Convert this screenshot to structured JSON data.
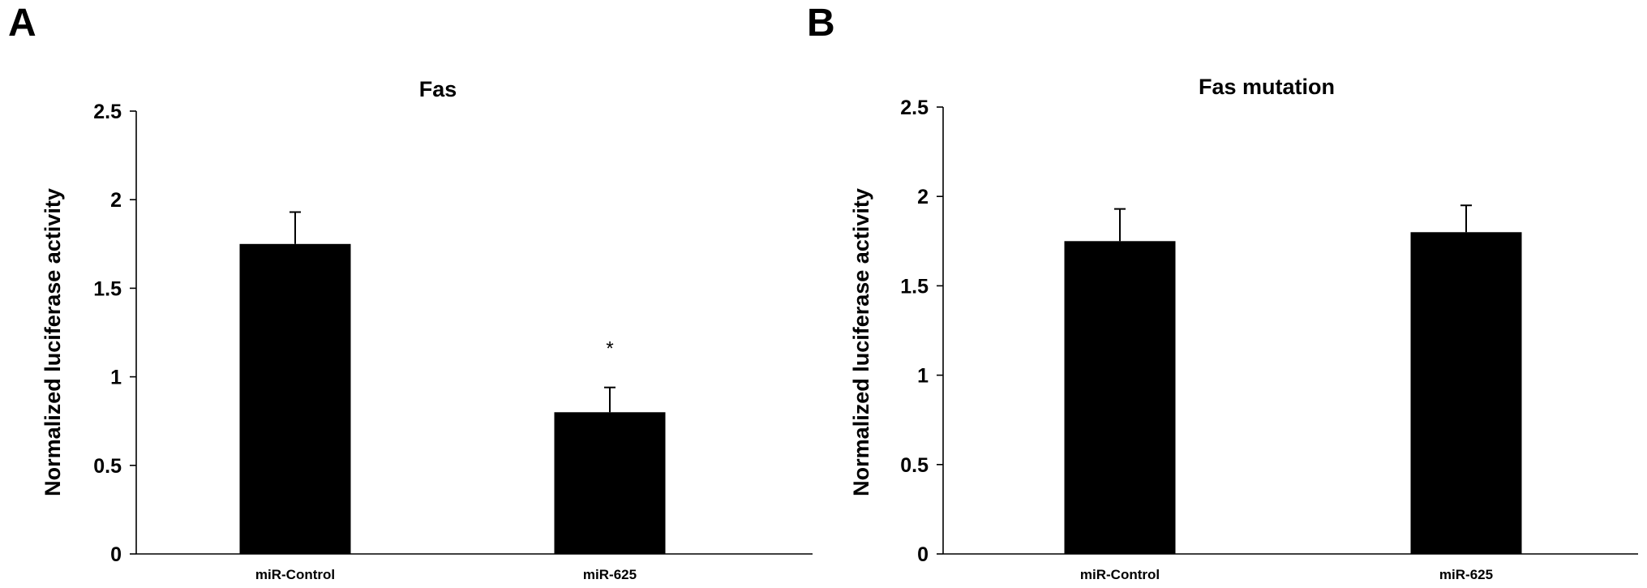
{
  "chart_data": [
    {
      "panel": "A",
      "type": "bar",
      "title": "Fas",
      "xlabel": "",
      "ylabel": "Normalized luciferase activity",
      "ylim": [
        0,
        2.5
      ],
      "yticks": [
        "0",
        "0.5",
        "1",
        "1.5",
        "2",
        "2.5"
      ],
      "categories": [
        "miR-Control",
        "miR-625"
      ],
      "values": [
        1.75,
        0.8
      ],
      "errors": [
        0.18,
        0.14
      ],
      "annotations": [
        "",
        "*"
      ],
      "bar_color": "#000000",
      "grid": false,
      "legend": "none"
    },
    {
      "panel": "B",
      "type": "bar",
      "title": "Fas mutation",
      "xlabel": "",
      "ylabel": "Normalized luciferase activity",
      "ylim": [
        0,
        2.5
      ],
      "yticks": [
        "0",
        "0.5",
        "1",
        "1.5",
        "2",
        "2.5"
      ],
      "categories": [
        "miR-Control",
        "miR-625"
      ],
      "values": [
        1.75,
        1.8
      ],
      "errors": [
        0.18,
        0.15
      ],
      "annotations": [
        "",
        ""
      ],
      "bar_color": "#000000",
      "grid": false,
      "legend": "none"
    }
  ]
}
